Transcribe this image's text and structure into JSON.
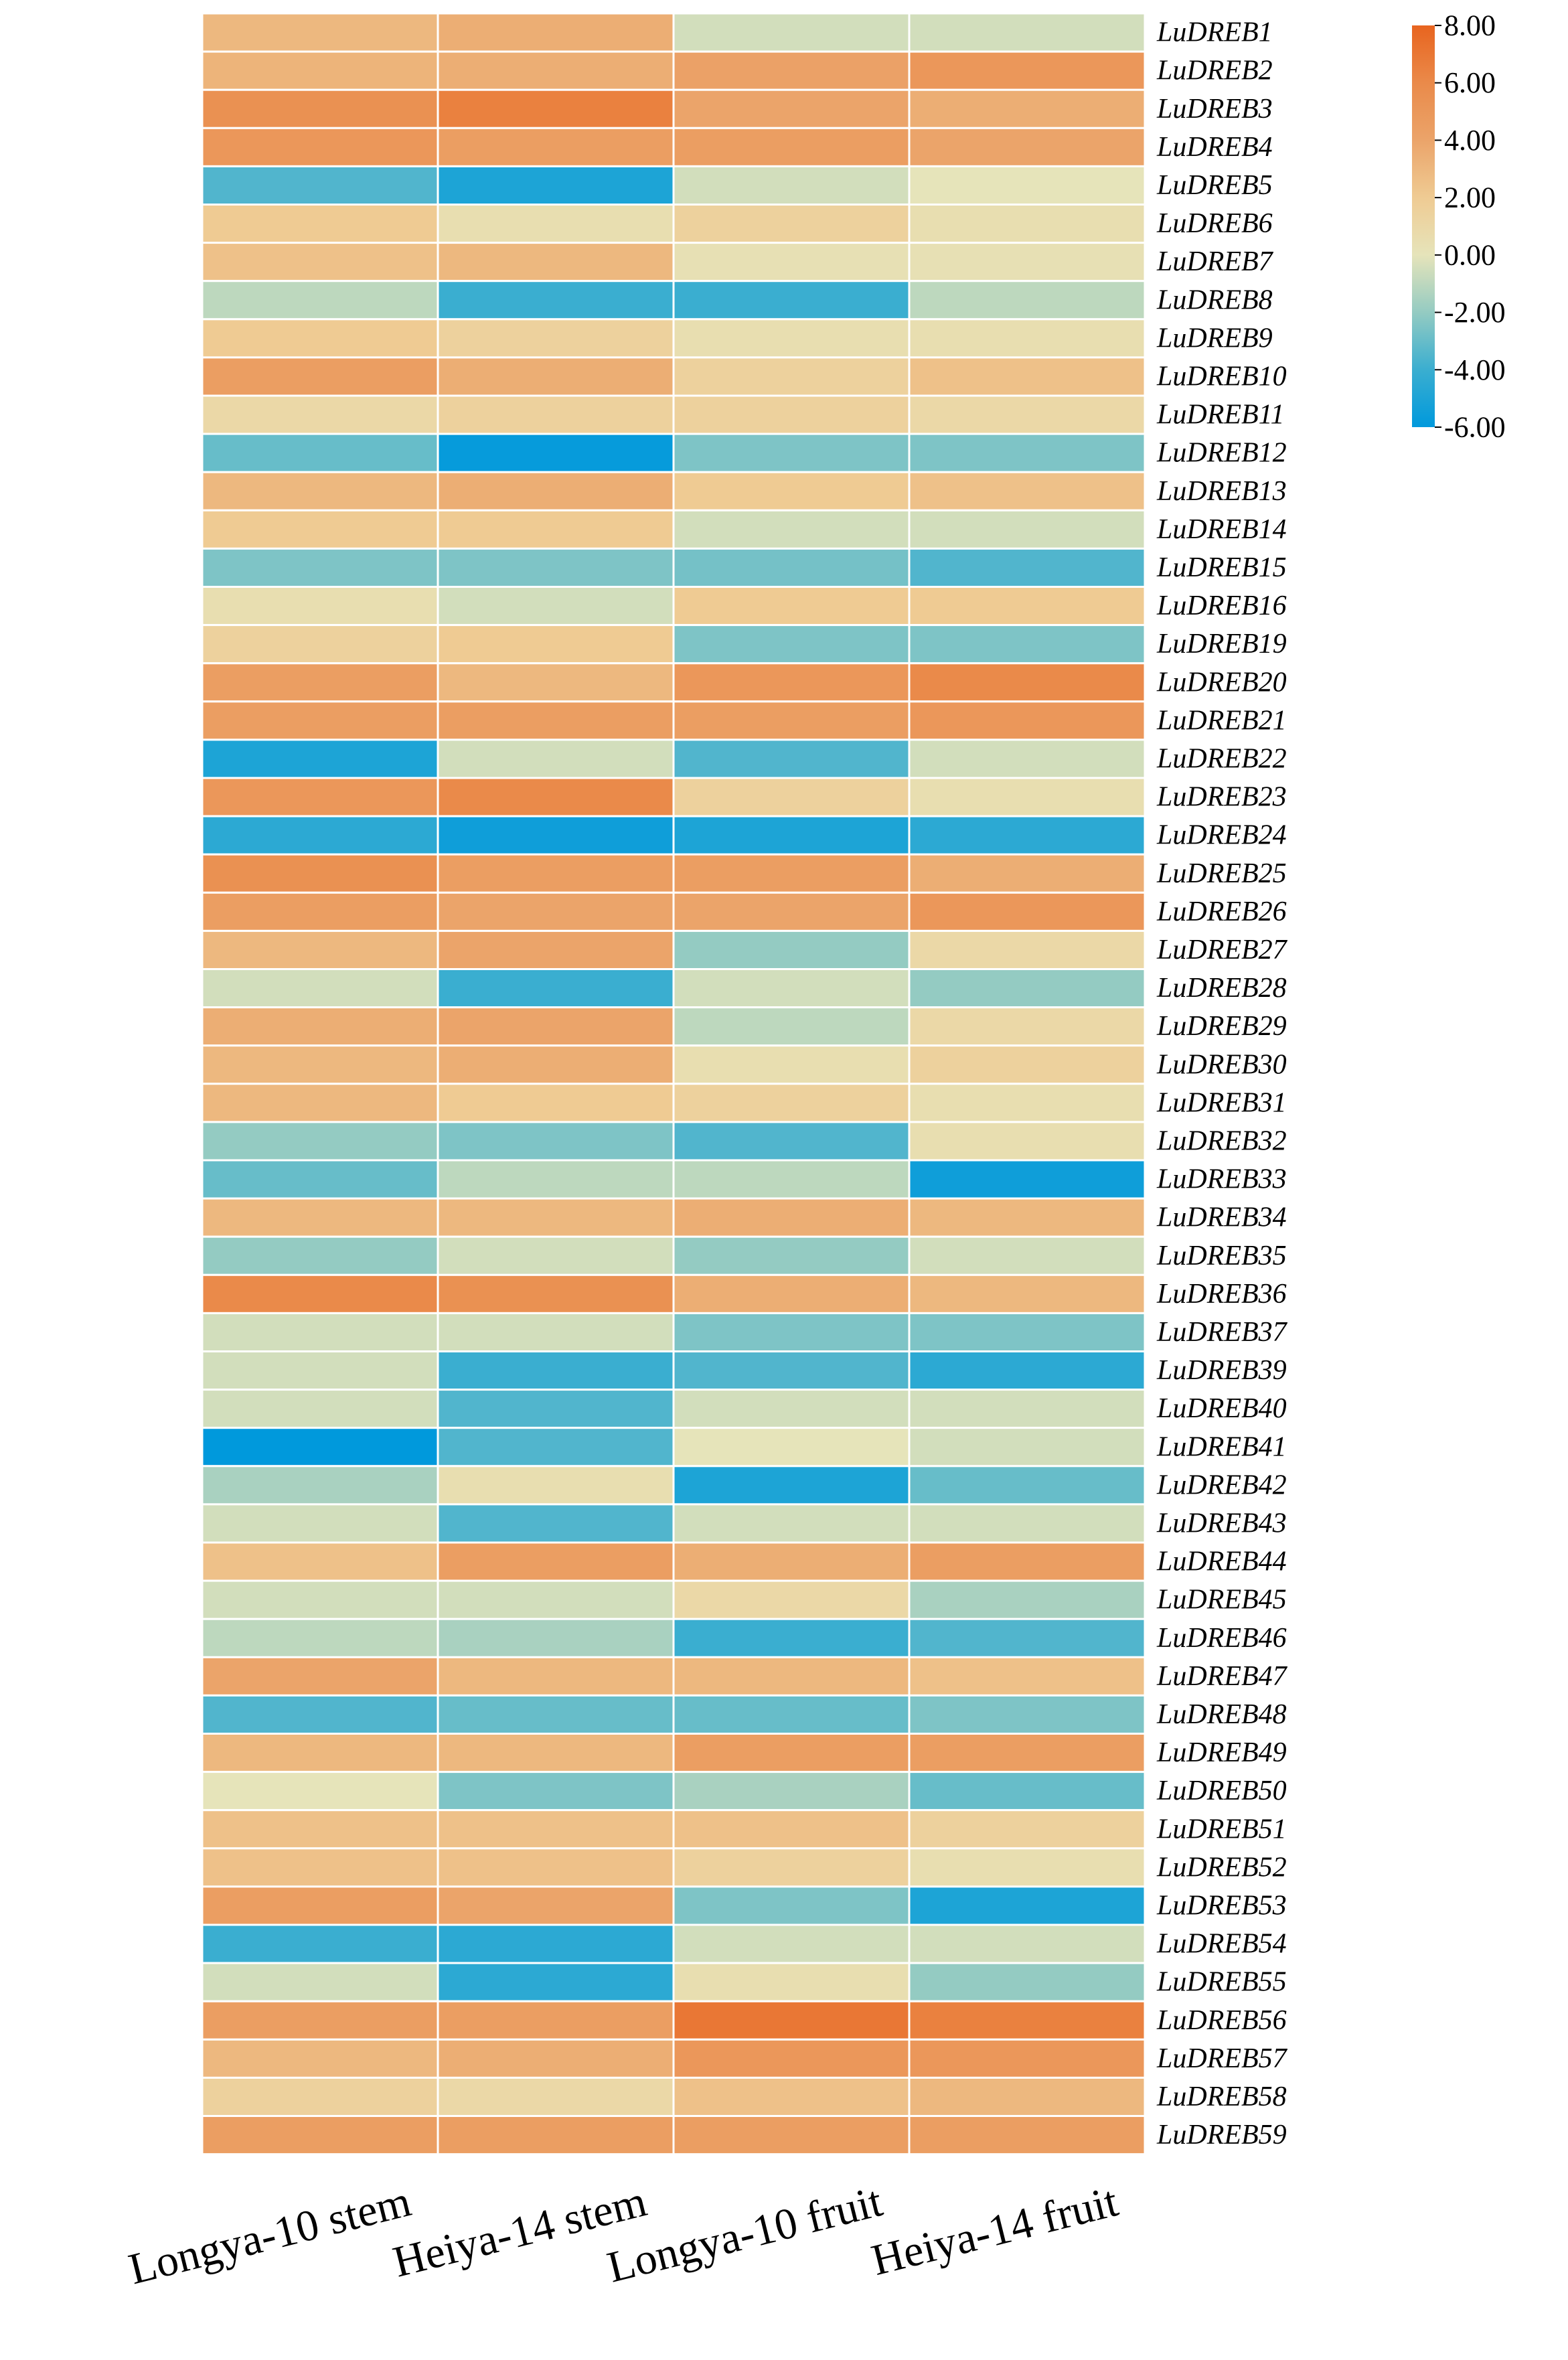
{
  "chart_data": {
    "type": "heatmap",
    "title": "",
    "columns": [
      "Longya-10 stem",
      "Heiya-14 stem",
      "Longya-10 fruit",
      "Heiya-14 fruit"
    ],
    "rows": [
      "LuDREB1",
      "LuDREB2",
      "LuDREB3",
      "LuDREB4",
      "LuDREB5",
      "LuDREB6",
      "LuDREB7",
      "LuDREB8",
      "LuDREB9",
      "LuDREB10",
      "LuDREB11",
      "LuDREB12",
      "LuDREB13",
      "LuDREB14",
      "LuDREB15",
      "LuDREB16",
      "LuDREB19",
      "LuDREB20",
      "LuDREB21",
      "LuDREB22",
      "LuDREB23",
      "LuDREB24",
      "LuDREB25",
      "LuDREB26",
      "LuDREB27",
      "LuDREB28",
      "LuDREB29",
      "LuDREB30",
      "LuDREB31",
      "LuDREB32",
      "LuDREB33",
      "LuDREB34",
      "LuDREB35",
      "LuDREB36",
      "LuDREB37",
      "LuDREB39",
      "LuDREB40",
      "LuDREB41",
      "LuDREB42",
      "LuDREB43",
      "LuDREB44",
      "LuDREB45",
      "LuDREB46",
      "LuDREB47",
      "LuDREB48",
      "LuDREB49",
      "LuDREB50",
      "LuDREB51",
      "LuDREB52",
      "LuDREB53",
      "LuDREB54",
      "LuDREB55",
      "LuDREB56",
      "LuDREB57",
      "LuDREB58",
      "LuDREB59"
    ],
    "values": [
      [
        3.0,
        3.5,
        -0.5,
        -0.5
      ],
      [
        3.2,
        3.5,
        4.2,
        5.0
      ],
      [
        5.5,
        6.5,
        4.0,
        3.5
      ],
      [
        5.0,
        4.5,
        4.5,
        4.0
      ],
      [
        -3.5,
        -5.0,
        -0.5,
        0.0
      ],
      [
        2.0,
        0.5,
        1.5,
        0.5
      ],
      [
        2.5,
        3.0,
        0.3,
        0.3
      ],
      [
        -1.0,
        -4.0,
        -4.0,
        -1.0
      ],
      [
        2.0,
        1.5,
        0.5,
        0.5
      ],
      [
        4.5,
        3.5,
        1.5,
        2.5
      ],
      [
        1.0,
        1.5,
        1.5,
        1.0
      ],
      [
        -3.0,
        -5.8,
        -2.5,
        -2.5
      ],
      [
        3.0,
        3.5,
        2.0,
        2.5
      ],
      [
        2.0,
        2.0,
        -0.5,
        -0.5
      ],
      [
        -2.5,
        -2.5,
        -2.7,
        -3.5
      ],
      [
        0.5,
        -0.5,
        2.0,
        2.0
      ],
      [
        1.5,
        2.0,
        -2.5,
        -2.5
      ],
      [
        4.5,
        3.0,
        5.0,
        6.0
      ],
      [
        4.5,
        4.5,
        4.5,
        5.0
      ],
      [
        -5.0,
        -0.5,
        -3.5,
        -0.5
      ],
      [
        5.0,
        6.0,
        1.5,
        0.5
      ],
      [
        -4.5,
        -5.5,
        -5.0,
        -4.5
      ],
      [
        5.5,
        4.5,
        4.5,
        3.5
      ],
      [
        4.5,
        4.0,
        4.0,
        5.0
      ],
      [
        3.0,
        4.0,
        -2.0,
        1.0
      ],
      [
        -0.5,
        -4.0,
        -0.5,
        -2.0
      ],
      [
        3.5,
        4.0,
        -1.0,
        1.0
      ],
      [
        3.0,
        3.5,
        0.5,
        1.5
      ],
      [
        3.0,
        2.0,
        1.5,
        0.5
      ],
      [
        -2.0,
        -2.5,
        -3.5,
        0.5
      ],
      [
        -3.0,
        -1.0,
        -1.0,
        -5.5
      ],
      [
        3.0,
        3.0,
        3.5,
        3.0
      ],
      [
        -2.0,
        -0.5,
        -2.0,
        -0.5
      ],
      [
        6.0,
        5.5,
        3.5,
        3.0
      ],
      [
        -0.5,
        -0.5,
        -2.5,
        -2.5
      ],
      [
        -0.5,
        -4.0,
        -3.5,
        -4.5
      ],
      [
        -0.5,
        -3.5,
        -0.5,
        -0.5
      ],
      [
        -6.0,
        -3.5,
        0.0,
        -0.5
      ],
      [
        -1.5,
        0.5,
        -5.0,
        -3.0
      ],
      [
        -0.5,
        -3.5,
        -0.5,
        -0.5
      ],
      [
        2.5,
        4.5,
        3.5,
        4.5
      ],
      [
        -0.5,
        -0.5,
        1.0,
        -1.5
      ],
      [
        -1.0,
        -1.5,
        -4.0,
        -3.5
      ],
      [
        4.0,
        3.0,
        3.0,
        2.5
      ],
      [
        -3.5,
        -3.0,
        -3.0,
        -2.5
      ],
      [
        3.0,
        3.0,
        4.5,
        4.5
      ],
      [
        0.0,
        -2.5,
        -1.5,
        -3.0
      ],
      [
        2.5,
        2.5,
        2.5,
        1.5
      ],
      [
        2.5,
        2.5,
        1.5,
        0.5
      ],
      [
        4.5,
        4.0,
        -2.5,
        -5.0
      ],
      [
        -4.0,
        -4.5,
        -0.5,
        -0.5
      ],
      [
        -0.5,
        -4.5,
        0.5,
        -2.0
      ],
      [
        4.5,
        4.5,
        7.0,
        6.5
      ],
      [
        3.0,
        3.5,
        5.0,
        5.0
      ],
      [
        1.5,
        1.0,
        2.5,
        3.0
      ],
      [
        4.5,
        4.5,
        4.5,
        4.5
      ]
    ],
    "zlim": [
      -6,
      8
    ],
    "colorbar": {
      "position": "top-right",
      "ticks": [
        8,
        6,
        4,
        2,
        0,
        -2,
        -4,
        -6
      ],
      "tick_labels": [
        "8.00",
        "6.00",
        "4.00",
        "2.00",
        "0.00",
        "-2.00",
        "-4.00",
        "-6.00"
      ],
      "stops": [
        {
          "value": -6,
          "color": "#0099dc"
        },
        {
          "value": -4,
          "color": "#3aaed0"
        },
        {
          "value": -2,
          "color": "#94cbc2"
        },
        {
          "value": 0,
          "color": "#e6e4ba"
        },
        {
          "value": 2,
          "color": "#efcb93"
        },
        {
          "value": 4,
          "color": "#eba46a"
        },
        {
          "value": 6,
          "color": "#ea8a4a"
        },
        {
          "value": 8,
          "color": "#e8641f"
        }
      ]
    },
    "xlabel": "",
    "ylabel": ""
  }
}
